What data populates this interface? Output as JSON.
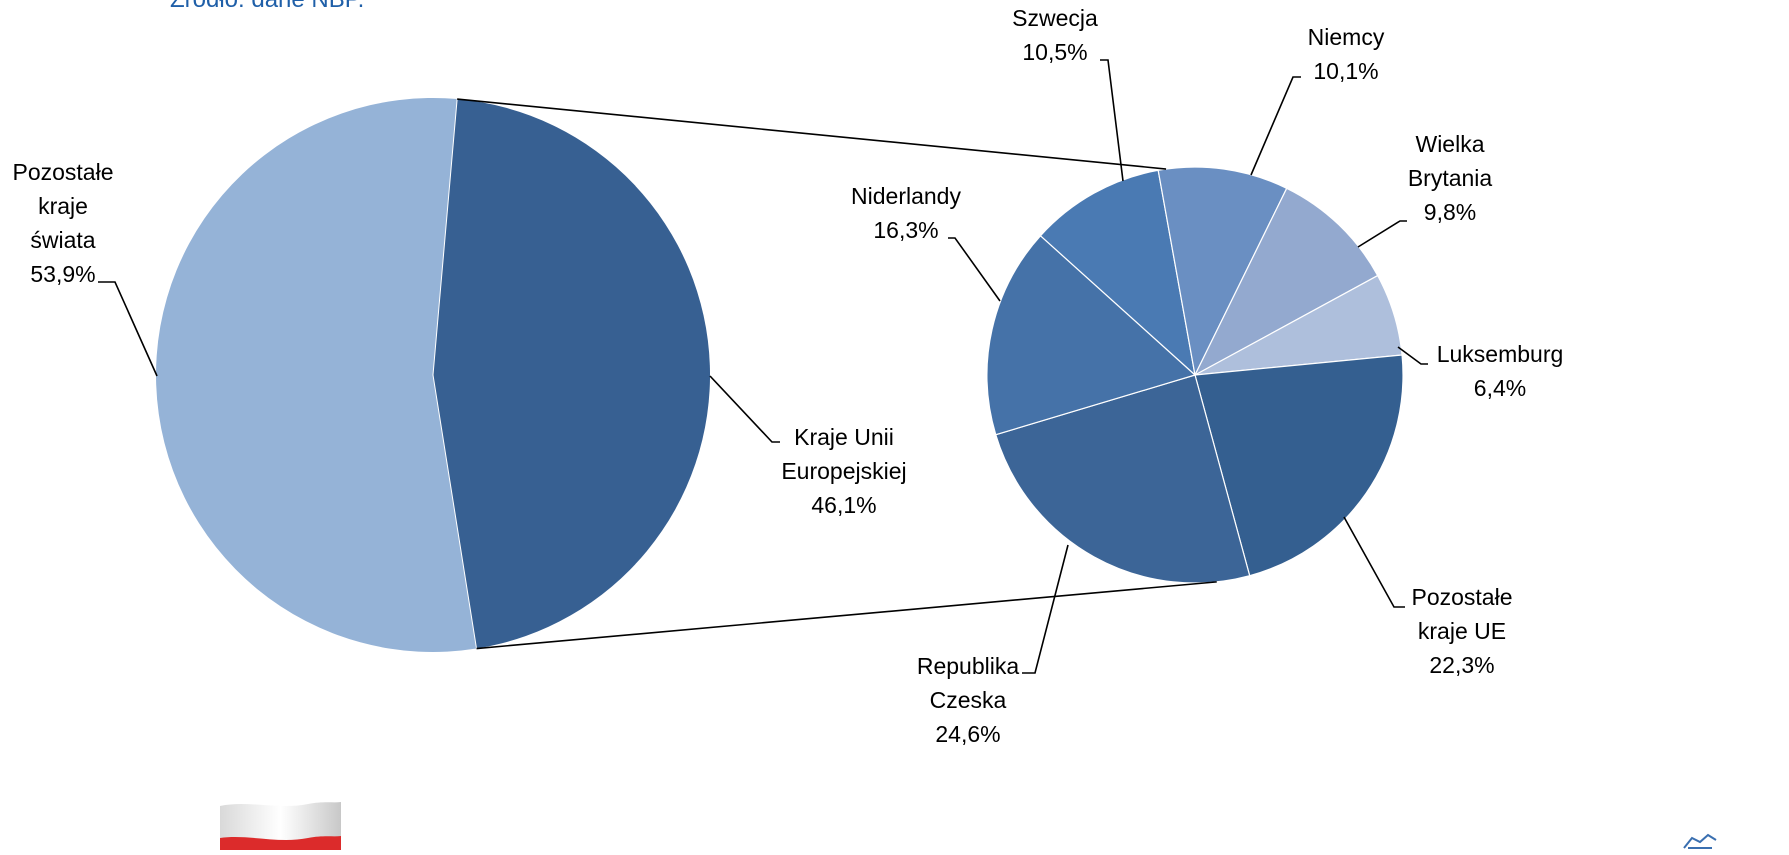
{
  "source_note": "Źródło: dane NBP.",
  "chart_data": {
    "type": "pie",
    "layout": "pie-of-pie",
    "main_pie": {
      "slices": [
        {
          "label": [
            "Pozostałe",
            "kraje",
            "świata"
          ],
          "value_label": "53,9%",
          "value": 53.9,
          "color": "#95b3d7"
        },
        {
          "label": [
            "Kraje Unii",
            "Europejskiej"
          ],
          "value_label": "46,1%",
          "value": 46.1,
          "color": "#376092"
        }
      ]
    },
    "detail_pie": {
      "slices": [
        {
          "label": [
            "Szwecja"
          ],
          "value_label": "10,5%",
          "value": 10.5,
          "color": "#4a7ab3"
        },
        {
          "label": [
            "Niemcy"
          ],
          "value_label": "10,1%",
          "value": 10.1,
          "color": "#6a8fc2"
        },
        {
          "label": [
            "Wielka",
            "Brytania"
          ],
          "value_label": "9,8%",
          "value": 9.8,
          "color": "#93a9cf"
        },
        {
          "label": [
            "Luksemburg"
          ],
          "value_label": "6,4%",
          "value": 6.4,
          "color": "#aebfdc"
        },
        {
          "label": [
            "Pozostałe",
            "kraje UE"
          ],
          "value_label": "22,3%",
          "value": 22.3,
          "color": "#345f90"
        },
        {
          "label": [
            "Republika",
            "Czeska"
          ],
          "value_label": "24,6%",
          "value": 24.6,
          "color": "#3c6597"
        },
        {
          "label": [
            "Niderlandy"
          ],
          "value_label": "16,3%",
          "value": 16.3,
          "color": "#4572a8"
        }
      ]
    }
  }
}
